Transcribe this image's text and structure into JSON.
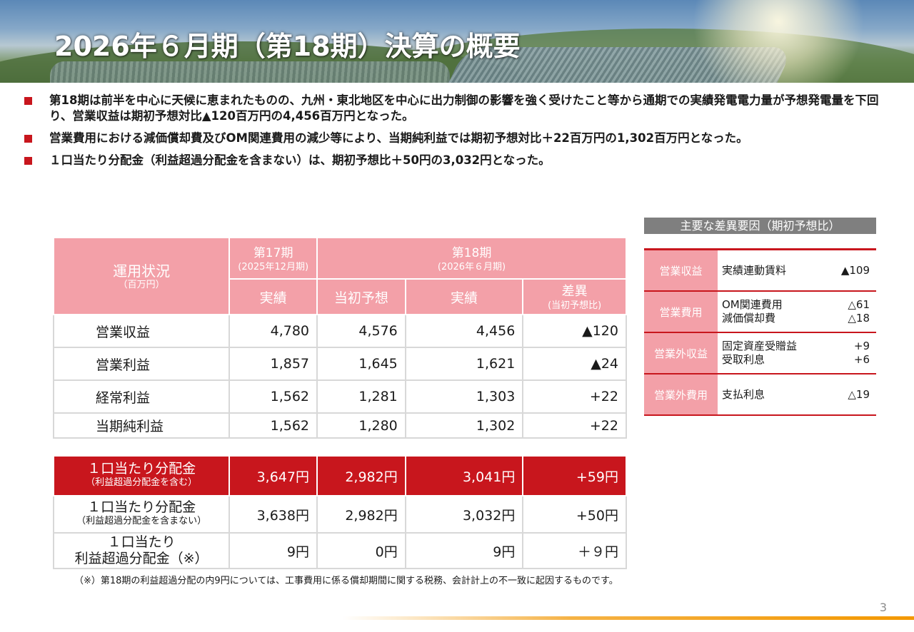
{
  "header": {
    "title": "2026年６月期（第18期）決算の概要"
  },
  "bullets": [
    "第18期は前半を中心に天候に恵まれたものの、九州・東北地区を中心に出力制御の影響を強く受けたこと等から通期での実績発電電力量が予想発電量を下回り、営業収益は期初予想対比▲120百万円の4,456百万円となった。",
    "営業費用における減価償却費及びOM関連費用の減少等により、当期純利益では期初予想対比＋22百万円の1,302百万円となった。",
    "１口当たり分配金（利益超過分配金を含まない）は、期初予想比＋50円の3,032円となった。"
  ],
  "table": {
    "corner_title": "運用状況",
    "corner_unit": "（百万円）",
    "period17": {
      "label": "第17期",
      "sub": "(2025年12月期)"
    },
    "period18": {
      "label": "第18期",
      "sub": "(2026年６月期)"
    },
    "cols": {
      "actual17": "実績",
      "forecast": "当初予想",
      "actual18": "実績",
      "diff": "差異",
      "diff_sub": "(当初予想比)"
    },
    "rows": [
      {
        "label": "営業収益",
        "actual17": "4,780",
        "forecast": "4,576",
        "actual18": "4,456",
        "diff": "▲120"
      },
      {
        "label": "営業利益",
        "actual17": "1,857",
        "forecast": "1,645",
        "actual18": "1,621",
        "diff": "▲24"
      },
      {
        "label": "経常利益",
        "actual17": "1,562",
        "forecast": "1,281",
        "actual18": "1,303",
        "diff": "+22"
      },
      {
        "label": "当期純利益",
        "actual17": "1,562",
        "forecast": "1,280",
        "actual18": "1,302",
        "diff": "+22"
      }
    ]
  },
  "distribution": [
    {
      "label": "１口当たり分配金",
      "sub": "（利益超過分配金を含む）",
      "actual17": "3,647円",
      "forecast": "2,982円",
      "actual18": "3,041円",
      "diff": "+59円"
    },
    {
      "label": "１口当たり分配金",
      "sub": "（利益超過分配金を含まない）",
      "actual17": "3,638円",
      "forecast": "2,982円",
      "actual18": "3,032円",
      "diff": "+50円"
    },
    {
      "label": "１口当たり",
      "label2": "利益超過分配金（※）",
      "actual17": "9円",
      "forecast": "0円",
      "actual18": "9円",
      "diff": "＋９円"
    }
  ],
  "footnote": "（※）第18期の利益超過分配の内9円については、工事費用に係る償却期間に関する税務、会計計上の不一致に起因するものです。",
  "factors": {
    "title": "主要な差異要因（期初予想比）",
    "rows": [
      {
        "category": "営業収益",
        "items": [
          {
            "name": "実績連動賃料",
            "value": "▲109"
          }
        ]
      },
      {
        "category": "営業費用",
        "items": [
          {
            "name": "OM関連費用",
            "value": "△61"
          },
          {
            "name": "減価償却費",
            "value": "△18"
          }
        ]
      },
      {
        "category": "営業外収益",
        "items": [
          {
            "name": "固定資産受贈益",
            "value": "+9"
          },
          {
            "name": "受取利息",
            "value": "+6"
          }
        ]
      },
      {
        "category": "営業外費用",
        "items": [
          {
            "name": "支払利息",
            "value": "△19"
          }
        ]
      }
    ]
  },
  "page_number": "3",
  "colors": {
    "accent_red": "#c8161d",
    "header_pink": "#f3a0a8",
    "factor_title_gray": "#7f7f7f"
  }
}
